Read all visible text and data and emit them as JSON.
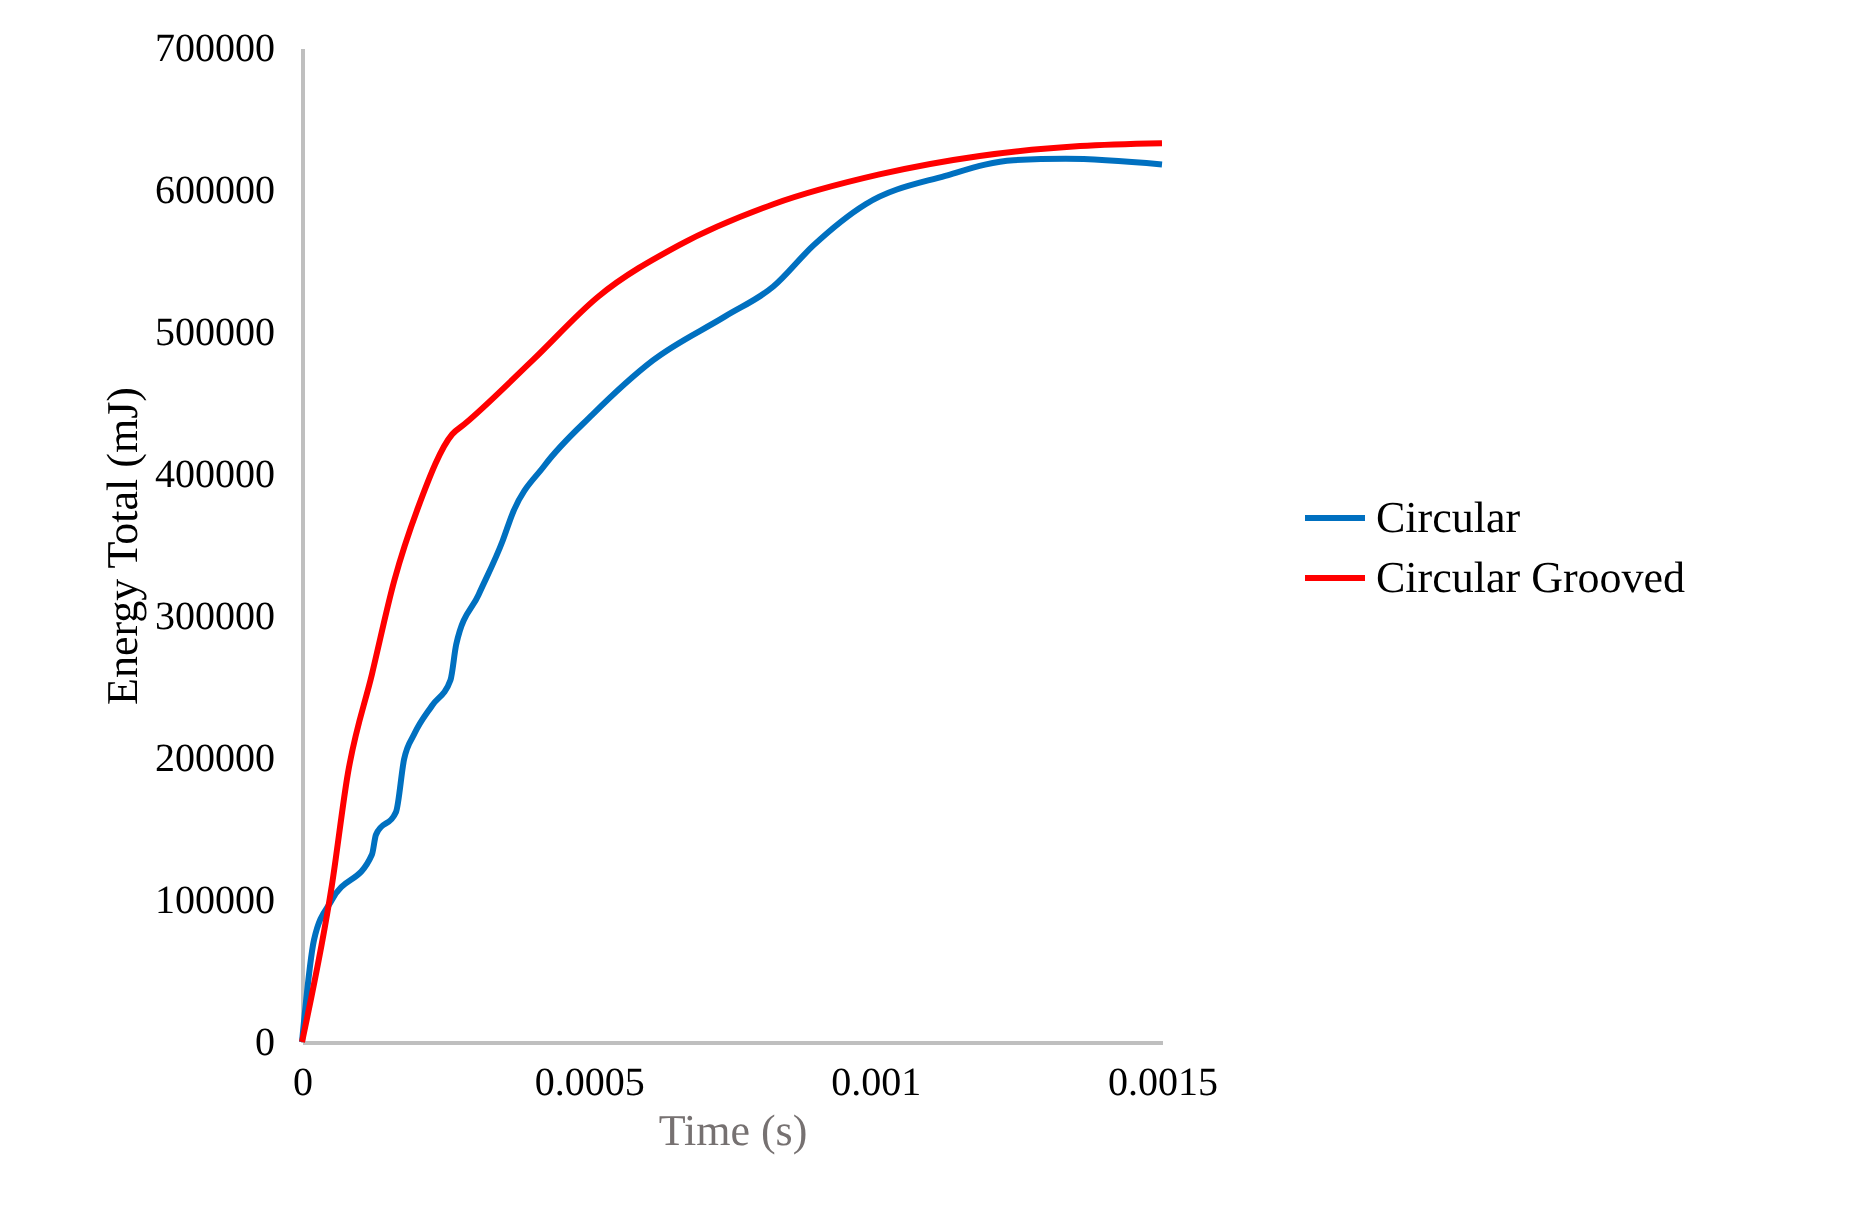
{
  "chart_data": {
    "type": "line",
    "xlabel": "Time (s)",
    "ylabel": "Energy Total (mJ)",
    "xlim": [
      0,
      0.0015
    ],
    "xticks": [
      0,
      0.0005,
      0.001,
      0.0015
    ],
    "ylim": [
      0,
      700000
    ],
    "yticks": [
      0,
      100000,
      200000,
      300000,
      400000,
      500000,
      600000,
      700000
    ],
    "grid": false,
    "legend": "right",
    "marker": "none",
    "line_style": "solid",
    "series": [
      {
        "name": "Circular",
        "color": "#0070c0",
        "x": [
          0,
          2.1e-05,
          5.2e-05,
          0.000122,
          0.000129,
          0.000164,
          0.000178,
          0.000196,
          0.000227,
          0.000259,
          0.000269,
          0.000308,
          0.00035,
          0.000367,
          0.000423,
          0.000507,
          0.000612,
          0.000738,
          0.000822,
          0.000892,
          0.000983,
          0.001122,
          0.001241,
          0.001332,
          0.0015
        ],
        "values": [
          0,
          72000,
          100000,
          132000,
          146000,
          162000,
          199000,
          217000,
          237000,
          255000,
          280000,
          315000,
          353000,
          372000,
          406000,
          442000,
          480000,
          511000,
          532000,
          561000,
          590000,
          610000,
          621000,
          622000,
          618000
        ]
      },
      {
        "name": "Circular Grooved",
        "color": "#ff0000",
        "x": [
          0,
          5.2e-05,
          8e-05,
          0.000122,
          0.000161,
          0.000203,
          0.000262,
          0.000283,
          0.000402,
          0.000517,
          0.000657,
          0.000822,
          0.001007,
          0.001182,
          0.001357,
          0.0015
        ],
        "values": [
          0,
          110000,
          189000,
          259000,
          325000,
          377000,
          428000,
          435000,
          480000,
          525000,
          561000,
          590000,
          611000,
          624000,
          631000,
          633000
        ]
      }
    ]
  }
}
